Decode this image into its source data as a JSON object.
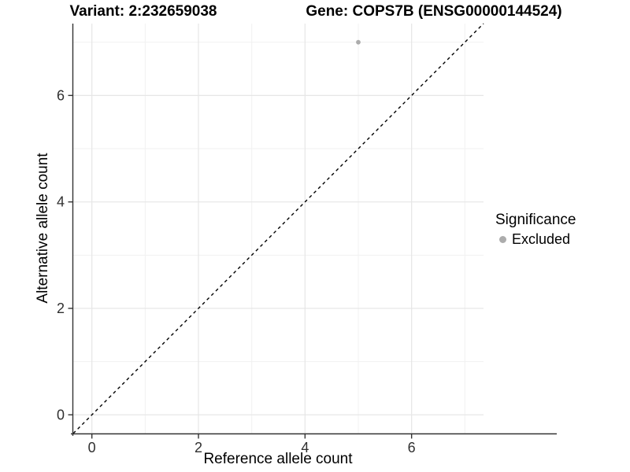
{
  "figure": {
    "title_variant": "Variant: 2:232659038",
    "title_gene": "Gene: COPS7B (ENSG00000144524)"
  },
  "chart_data": {
    "type": "scatter",
    "title": "Variant: 2:232659038   Gene: COPS7B (ENSG00000144524)",
    "xlabel": "Reference allele count",
    "ylabel": "Alternative allele count",
    "xlim": [
      -0.35,
      7.35
    ],
    "ylim": [
      -0.35,
      7.35
    ],
    "x_major_ticks": [
      0,
      2,
      4,
      6
    ],
    "y_major_ticks": [
      0,
      2,
      4,
      6
    ],
    "x_minor_ticks": [
      1,
      3,
      5,
      7
    ],
    "y_minor_ticks": [
      1,
      3,
      5,
      7
    ],
    "grid": "major+minor",
    "reference_line": {
      "kind": "identity y=x",
      "slope": 1,
      "intercept": 0,
      "linestyle": "dashed",
      "color": "#000000"
    },
    "series": [
      {
        "name": "Excluded",
        "color": "#acacac",
        "points": [
          {
            "x": 5,
            "y": 7
          }
        ]
      }
    ],
    "legend": {
      "title": "Significance",
      "position": "right",
      "items": [
        {
          "label": "Excluded",
          "color": "#acacac"
        }
      ]
    }
  },
  "colors": {
    "background": "#ffffff",
    "axis_line": "#333333",
    "tick_mark": "#333333",
    "grid_major": "#e6e6e6",
    "grid_minor": "#f1f1f1",
    "tick_text": "#303030",
    "point": "#acacac"
  }
}
